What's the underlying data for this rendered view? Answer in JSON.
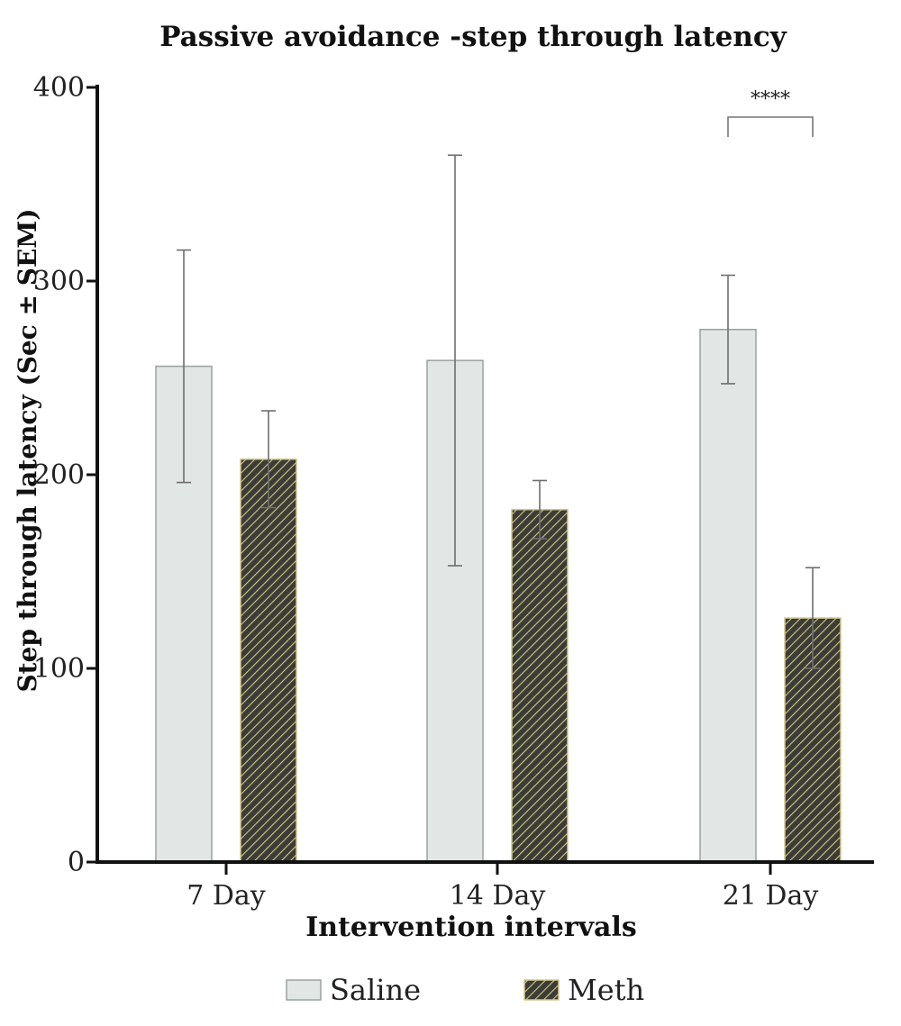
{
  "chart_data": {
    "type": "bar",
    "title": "Passive avoidance -step through latency",
    "xlabel": "Intervention intervals",
    "ylabel": "Step through latency (Sec ± SEM)",
    "categories": [
      "7 Day",
      "14 Day",
      "21 Day"
    ],
    "ylim": [
      0,
      400
    ],
    "yticks": [
      0,
      100,
      200,
      300,
      400
    ],
    "grid": false,
    "legend_position": "bottom",
    "series": [
      {
        "name": "Saline",
        "values": [
          256,
          259,
          275
        ],
        "errors": [
          60,
          106,
          28
        ],
        "color": "#e2e6e4",
        "pattern": "solid"
      },
      {
        "name": "Meth",
        "values": [
          208,
          182,
          126
        ],
        "errors": [
          25,
          15,
          26
        ],
        "color": "#3d3d35",
        "pattern": "hatched"
      }
    ],
    "annotations": [
      {
        "text": "****",
        "category": "21 Day",
        "between": [
          "Saline",
          "Meth"
        ]
      }
    ]
  }
}
